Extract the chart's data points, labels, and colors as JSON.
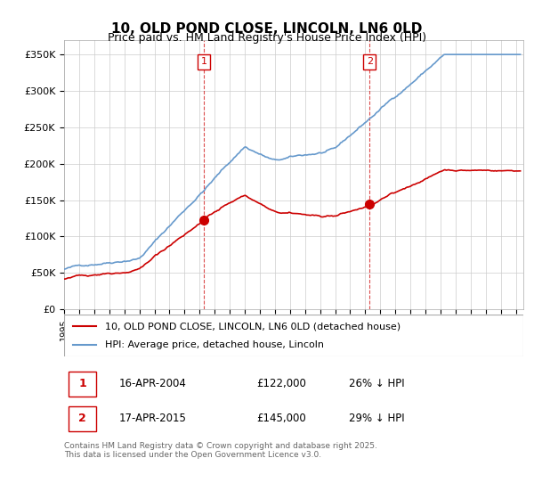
{
  "title": "10, OLD POND CLOSE, LINCOLN, LN6 0LD",
  "subtitle": "Price paid vs. HM Land Registry's House Price Index (HPI)",
  "ylabel_ticks": [
    "£0",
    "£50K",
    "£100K",
    "£150K",
    "£200K",
    "£250K",
    "£300K",
    "£350K"
  ],
  "ylim": [
    0,
    370000
  ],
  "xlim_start": 1995.0,
  "xlim_end": 2025.5,
  "sale1_date": 2004.29,
  "sale1_price": 122000,
  "sale1_label": "1",
  "sale2_date": 2015.29,
  "sale2_price": 145000,
  "sale2_label": "2",
  "red_color": "#cc0000",
  "blue_color": "#6699cc",
  "dashed_red": "#cc0000",
  "background_color": "#ffffff",
  "grid_color": "#cccccc",
  "legend_line1": "10, OLD POND CLOSE, LINCOLN, LN6 0LD (detached house)",
  "legend_line2": "HPI: Average price, detached house, Lincoln",
  "footnote": "Contains HM Land Registry data © Crown copyright and database right 2025.\nThis data is licensed under the Open Government Licence v3.0.",
  "table_row1": [
    "1",
    "16-APR-2004",
    "£122,000",
    "26% ↓ HPI"
  ],
  "table_row2": [
    "2",
    "17-APR-2015",
    "£145,000",
    "29% ↓ HPI"
  ]
}
